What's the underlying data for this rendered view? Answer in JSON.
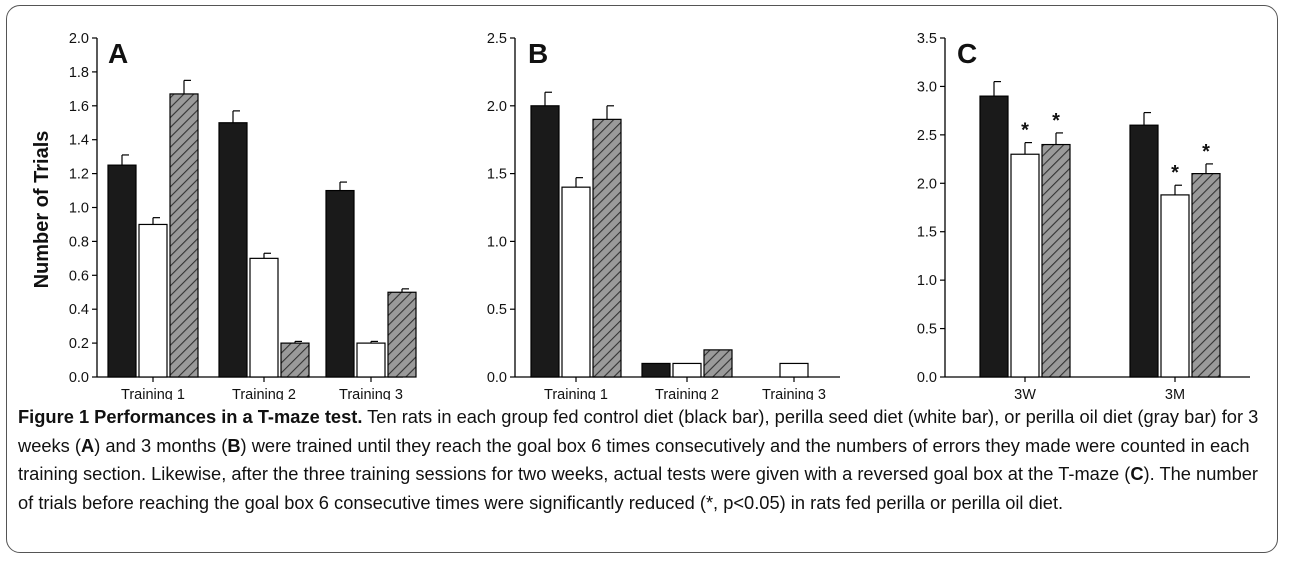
{
  "chart_data": [
    {
      "type": "bar",
      "panel_label": "A",
      "categories": [
        "Training 1",
        "Training 2",
        "Training 3"
      ],
      "series": [
        {
          "color": "#1a1a1a",
          "fill": "solid",
          "values": [
            1.25,
            1.5,
            1.1
          ],
          "errors": [
            0.06,
            0.07,
            0.05
          ]
        },
        {
          "color": "#ffffff",
          "fill": "open",
          "values": [
            0.9,
            0.7,
            0.2
          ],
          "errors": [
            0.04,
            0.03,
            0.01
          ]
        },
        {
          "color": "#9a9a9a",
          "fill": "hatched",
          "values": [
            1.67,
            0.2,
            0.5
          ],
          "errors": [
            0.08,
            0.01,
            0.02
          ]
        }
      ],
      "ylabel": "Number of Trials",
      "ylim": [
        0,
        2.0
      ],
      "yticks": [
        "0.0",
        "0.2",
        "0.4",
        "0.6",
        "0.8",
        "1.0",
        "1.2",
        "1.4",
        "1.6",
        "1.8",
        "2.0"
      ],
      "significance": []
    },
    {
      "type": "bar",
      "panel_label": "B",
      "categories": [
        "Training 1",
        "Training 2",
        "Training 3"
      ],
      "series": [
        {
          "color": "#1a1a1a",
          "fill": "solid",
          "values": [
            2.0,
            0.1,
            0.0
          ],
          "errors": [
            0.1,
            0.0,
            0.0
          ]
        },
        {
          "color": "#ffffff",
          "fill": "open",
          "values": [
            1.4,
            0.1,
            0.1
          ],
          "errors": [
            0.07,
            0.0,
            0.0
          ]
        },
        {
          "color": "#9a9a9a",
          "fill": "hatched",
          "values": [
            1.9,
            0.2,
            0.0
          ],
          "errors": [
            0.1,
            0.0,
            0.0
          ]
        }
      ],
      "ylabel": "",
      "ylim": [
        0,
        2.5
      ],
      "yticks": [
        "0.0",
        "0.5",
        "1.0",
        "1.5",
        "2.0",
        "2.5"
      ],
      "significance": []
    },
    {
      "type": "bar",
      "panel_label": "C",
      "categories": [
        "3W",
        "3M"
      ],
      "series": [
        {
          "color": "#1a1a1a",
          "fill": "solid",
          "values": [
            2.9,
            2.6
          ],
          "errors": [
            0.15,
            0.13
          ]
        },
        {
          "color": "#ffffff",
          "fill": "open",
          "values": [
            2.3,
            1.88
          ],
          "errors": [
            0.12,
            0.1
          ]
        },
        {
          "color": "#9a9a9a",
          "fill": "hatched",
          "values": [
            2.4,
            2.1
          ],
          "errors": [
            0.12,
            0.1
          ]
        }
      ],
      "ylabel": "",
      "ylim": [
        0,
        3.5
      ],
      "yticks": [
        "0.0",
        "0.5",
        "1.0",
        "1.5",
        "2.0",
        "2.5",
        "3.0",
        "3.5"
      ],
      "significance": [
        {
          "category": 0,
          "series": 1,
          "mark": "*"
        },
        {
          "category": 0,
          "series": 2,
          "mark": "*"
        },
        {
          "category": 1,
          "series": 1,
          "mark": "*"
        },
        {
          "category": 1,
          "series": 2,
          "mark": "*"
        }
      ]
    }
  ],
  "caption": {
    "lead": "Figure 1 Performances in a T-maze test.",
    "body": [
      {
        "text": " Ten rats in each group fed control diet (black bar), perilla seed diet (white bar), or perilla oil diet (gray bar) for 3 weeks ("
      },
      {
        "text": "A",
        "bold": true
      },
      {
        "text": ") and 3 months ("
      },
      {
        "text": "B",
        "bold": true
      },
      {
        "text": ") were trained until they reach the goal box 6 times consecutively and the numbers of errors they made were counted in each training section. Likewise, after the three training sessions for two weeks, actual tests were given with a reversed goal box at the T-maze ("
      },
      {
        "text": "C",
        "bold": true
      },
      {
        "text": "). The number of trials before reaching the goal box 6 consecutive times were significantly reduced (*, p<0.05) in rats fed perilla or perilla oil diet."
      }
    ]
  }
}
